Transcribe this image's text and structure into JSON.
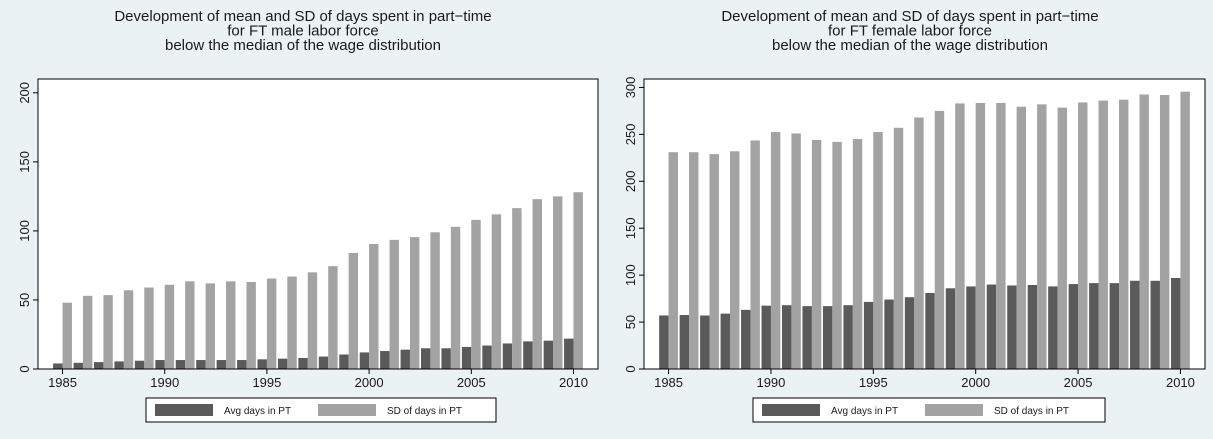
{
  "colors": {
    "background": "#eaf2f3",
    "plot_area": "#ffffff",
    "avg_bar": "#5a5a5a",
    "sd_bar": "#a3a3a3",
    "axis": "#000000"
  },
  "chart_data": [
    {
      "type": "bar",
      "title_lines": [
        "Development of mean and SD of days spent in part−time",
        "for FT male labor force",
        "below the median of the wage distribution"
      ],
      "xlabel": "",
      "ylabel": "",
      "x_ticks": [
        1985,
        1990,
        1995,
        2000,
        2005,
        2010
      ],
      "y_ticks": [
        0,
        50,
        100,
        150,
        200
      ],
      "ylim": [
        0,
        210
      ],
      "xlim": [
        1983.8,
        2011.2
      ],
      "grid": false,
      "legend_position": "bottom",
      "x": [
        1985,
        1986,
        1987,
        1988,
        1989,
        1990,
        1991,
        1992,
        1993,
        1994,
        1995,
        1996,
        1997,
        1998,
        1999,
        2000,
        2001,
        2002,
        2003,
        2004,
        2005,
        2006,
        2007,
        2008,
        2009,
        2010
      ],
      "series": [
        {
          "name": "Avg days in PT",
          "values": [
            4,
            4.5,
            5,
            5.5,
            6,
            6.5,
            6.5,
            6.5,
            6.5,
            6.5,
            7,
            7.5,
            8,
            9,
            10.5,
            12,
            13,
            14,
            15,
            15,
            16,
            17,
            18.5,
            20,
            20.5,
            22
          ]
        },
        {
          "name": "SD of days in PT",
          "values": [
            48,
            53,
            53.5,
            57,
            59,
            61,
            63.5,
            62,
            63.5,
            63,
            65.5,
            67,
            70,
            74.5,
            84,
            90.5,
            93.5,
            95.5,
            99,
            103,
            108,
            112,
            116.5,
            123,
            125,
            128
          ]
        }
      ]
    },
    {
      "type": "bar",
      "title_lines": [
        "Development of mean and SD of days spent in part−time",
        "for FT female labor force",
        "below the median of the wage distribution"
      ],
      "xlabel": "",
      "ylabel": "",
      "x_ticks": [
        1985,
        1990,
        1995,
        2000,
        2005,
        2010
      ],
      "y_ticks": [
        0,
        50,
        100,
        150,
        200,
        250,
        300
      ],
      "ylim": [
        0,
        309
      ],
      "xlim": [
        1983.8,
        2011.2
      ],
      "grid": false,
      "legend_position": "bottom",
      "x": [
        1985,
        1986,
        1987,
        1988,
        1989,
        1990,
        1991,
        1992,
        1993,
        1994,
        1995,
        1996,
        1997,
        1998,
        1999,
        2000,
        2001,
        2002,
        2003,
        2004,
        2005,
        2006,
        2007,
        2008,
        2009,
        2010
      ],
      "series": [
        {
          "name": "Avg days in PT",
          "values": [
            57,
            57.5,
            57,
            59,
            63,
            67.5,
            68,
            67,
            67,
            68,
            71.5,
            74,
            76.5,
            81,
            86,
            88,
            90,
            89,
            89.5,
            88,
            90.5,
            91.5,
            91.5,
            94,
            94,
            97
          ]
        },
        {
          "name": "SD of days in PT",
          "values": [
            231,
            231,
            229,
            232,
            243.5,
            252.5,
            251,
            244,
            242,
            245,
            252.5,
            257,
            268,
            275,
            283,
            283.5,
            283.5,
            279.5,
            282,
            278.5,
            284,
            286,
            287,
            292.5,
            292,
            295.5
          ]
        }
      ]
    }
  ]
}
